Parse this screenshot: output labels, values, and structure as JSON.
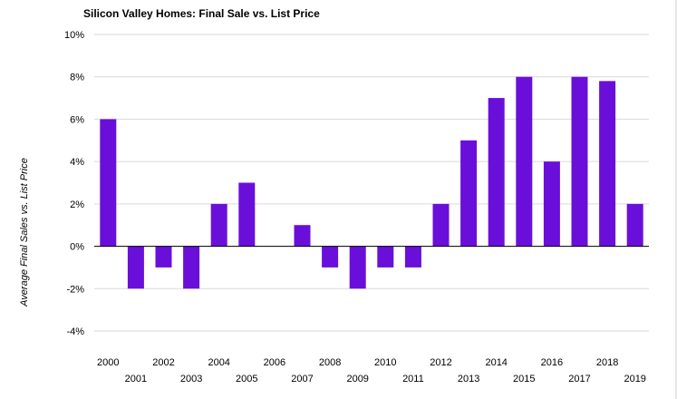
{
  "chart_data": {
    "type": "bar",
    "title": "Silicon Valley Homes: Final Sale vs. List Price",
    "xlabel": "",
    "ylabel": "Average Final Sales vs. List Price",
    "categories": [
      "2000",
      "2001",
      "2002",
      "2003",
      "2004",
      "2005",
      "2006",
      "2007",
      "2008",
      "2009",
      "2010",
      "2011",
      "2012",
      "2013",
      "2014",
      "2015",
      "2016",
      "2017",
      "2018",
      "2019"
    ],
    "values": [
      6,
      -2,
      -1,
      -2,
      2,
      3,
      0,
      1,
      -1,
      -2,
      -1,
      -1,
      2,
      5,
      7,
      8,
      4,
      8,
      7.8,
      2
    ],
    "ylim": [
      -4,
      10
    ],
    "yticks": [
      "-4%",
      "-2%",
      "0%",
      "2%",
      "4%",
      "6%",
      "8%",
      "10%"
    ],
    "grid": true,
    "bar_color": "#6a0fd9",
    "label_layout": "alternating"
  }
}
